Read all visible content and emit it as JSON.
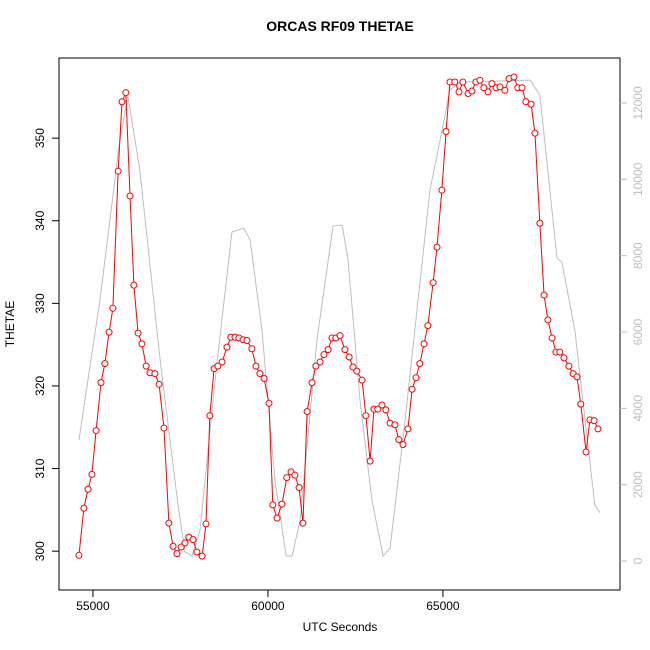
{
  "chart_data": {
    "type": "line",
    "title": "ORCAS RF09 THETAE",
    "xlabel": "UTC Seconds",
    "ylabel": "THETAE",
    "xlim": [
      54030,
      70060
    ],
    "ylim": [
      295.3,
      359.7
    ],
    "y2lim": [
      -760,
      13180
    ],
    "xticks": [
      55000,
      60000,
      65000
    ],
    "yticks": [
      300,
      310,
      320,
      330,
      340,
      350
    ],
    "y2ticks": [
      0,
      2000,
      4000,
      6000,
      8000,
      10000,
      12000
    ],
    "series": [
      {
        "color": "#ff0000",
        "marker": "circle",
        "x": [
          54600,
          54740,
          54860,
          54970,
          55090,
          55230,
          55340,
          55460,
          55570,
          55720,
          55830,
          55940,
          56060,
          56170,
          56290,
          56400,
          56520,
          56630,
          56770,
          56890,
          57030,
          57170,
          57290,
          57400,
          57520,
          57630,
          57740,
          57860,
          57970,
          58120,
          58230,
          58340,
          58460,
          58570,
          58690,
          58830,
          58940,
          59060,
          59170,
          59290,
          59400,
          59540,
          59660,
          59770,
          59890,
          60030,
          60140,
          60260,
          60400,
          60540,
          60660,
          60770,
          60890,
          61000,
          61120,
          61260,
          61370,
          61490,
          61600,
          61720,
          61830,
          61940,
          62060,
          62200,
          62320,
          62430,
          62540,
          62690,
          62800,
          62920,
          63030,
          63140,
          63260,
          63370,
          63490,
          63630,
          63740,
          63860,
          64000,
          64120,
          64230,
          64340,
          64460,
          64570,
          64720,
          64830,
          64970,
          65090,
          65200,
          65340,
          65460,
          65570,
          65720,
          65830,
          65940,
          66060,
          66170,
          66290,
          66400,
          66520,
          66630,
          66770,
          66890,
          67030,
          67140,
          67260,
          67370,
          67520,
          67630,
          67770,
          67890,
          68000,
          68120,
          68230,
          68340,
          68460,
          68600,
          68720,
          68830,
          68940,
          69090,
          69200,
          69320,
          69430
        ],
        "values": [
          299.5,
          305.2,
          307.5,
          309.3,
          314.6,
          320.4,
          322.7,
          326.5,
          329.4,
          346.0,
          354.4,
          355.5,
          343.0,
          332.2,
          326.4,
          325.1,
          322.4,
          321.6,
          321.5,
          320.2,
          314.9,
          303.4,
          300.6,
          299.7,
          300.5,
          301.0,
          301.7,
          301.4,
          299.9,
          299.4,
          303.3,
          316.4,
          322.1,
          322.4,
          322.9,
          324.7,
          325.9,
          325.9,
          325.8,
          325.6,
          325.5,
          324.5,
          322.4,
          321.5,
          320.9,
          317.9,
          305.6,
          304.0,
          305.7,
          308.9,
          309.6,
          309.2,
          307.7,
          303.4,
          316.9,
          320.4,
          322.4,
          322.9,
          323.8,
          324.4,
          325.8,
          325.8,
          326.1,
          324.4,
          323.5,
          322.3,
          321.8,
          320.7,
          316.4,
          310.9,
          317.2,
          317.2,
          317.7,
          317.1,
          315.5,
          315.3,
          313.5,
          312.9,
          314.8,
          319.6,
          321.0,
          322.7,
          325.1,
          327.3,
          332.5,
          336.8,
          343.7,
          350.8,
          356.8,
          356.8,
          355.6,
          356.8,
          355.4,
          355.7,
          356.8,
          357.0,
          356.1,
          355.6,
          356.6,
          356.1,
          356.2,
          355.8,
          357.2,
          357.4,
          356.1,
          356.1,
          354.4,
          354.1,
          350.6,
          339.7,
          331.0,
          328.0,
          325.8,
          324.1,
          324.1,
          323.4,
          322.4,
          321.5,
          321.1,
          317.8,
          312.0,
          315.9,
          315.8,
          314.8
        ]
      },
      {
        "color": "#bebebe",
        "axis": "y2",
        "x": [
          54600,
          55200,
          55770,
          56000,
          56340,
          56920,
          57430,
          57630,
          57830,
          58060,
          58490,
          58970,
          59310,
          59490,
          59830,
          60200,
          60520,
          60690,
          60920,
          61400,
          61860,
          62120,
          62290,
          62630,
          62970,
          63290,
          63490,
          63920,
          64630,
          64920,
          65200,
          65490,
          67490,
          67770,
          68260,
          68400,
          68770,
          69340,
          69490
        ],
        "values": [
          3170,
          6840,
          11030,
          12180,
          10240,
          5270,
          1470,
          240,
          130,
          810,
          4740,
          8620,
          8720,
          8410,
          6050,
          2120,
          130,
          130,
          1070,
          5790,
          8780,
          8800,
          7890,
          4220,
          1600,
          130,
          340,
          3690,
          9720,
          11030,
          12340,
          12550,
          12600,
          12210,
          7940,
          7834,
          6050,
          1470,
          1260
        ]
      }
    ]
  }
}
